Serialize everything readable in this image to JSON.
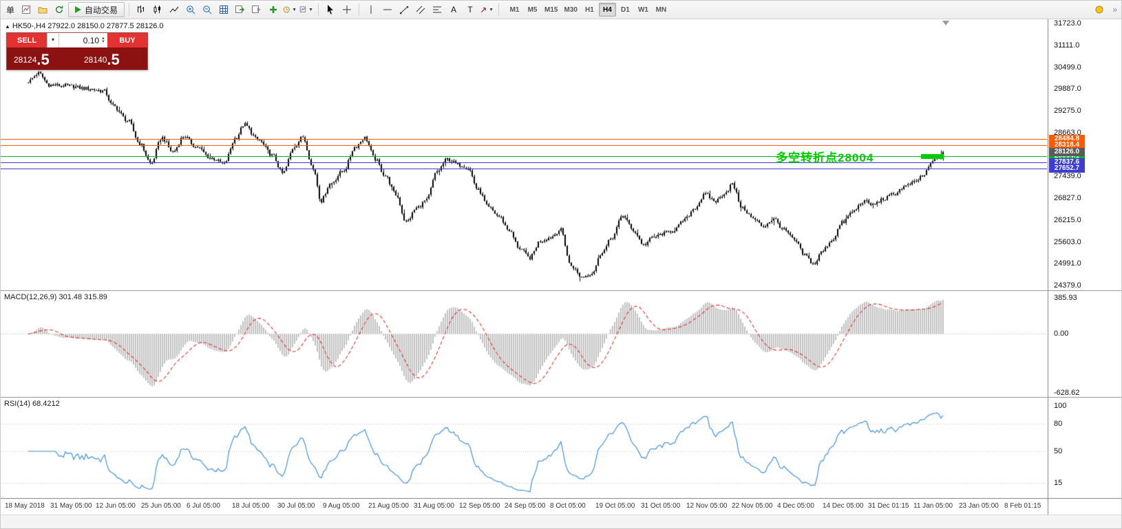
{
  "toolbar": {
    "order_label": "单",
    "autotrading_label": "自动交易",
    "timeframes": [
      "M1",
      "M5",
      "M15",
      "M30",
      "H1",
      "H4",
      "D1",
      "W1",
      "MN"
    ],
    "active_timeframe": "H4",
    "overflow_glyph": "»"
  },
  "trade_panel": {
    "sell_label": "SELL",
    "buy_label": "BUY",
    "volume_value": "0.10",
    "sell_price_main": "28124",
    "sell_price_big": ".5",
    "buy_price_main": "28140",
    "buy_price_big": ".5"
  },
  "chart": {
    "symbol_ohlc_label": "HK50-,H4 27922.0 28150.0 27877.5 28126.0",
    "annotation_text": "多空转折点28004",
    "annotation_color": "#00cc00",
    "current_price_label": "28126.0",
    "current_price_value": 28126.0,
    "current_price_bg": "#5a5a5a",
    "levels": [
      {
        "value": 28484.8,
        "label": "28484.8",
        "color": "#ff5a00"
      },
      {
        "value": 28318.4,
        "label": "28318.4",
        "color": "#ff5a00"
      },
      {
        "value": 28004.1,
        "label": "28004.1",
        "color": "#00b22d"
      },
      {
        "value": 27837.6,
        "label": "27837.6",
        "color": "#3d3dd6"
      },
      {
        "value": 27652.7,
        "label": "27652.7",
        "color": "#3d3dd6"
      }
    ],
    "y_axis_values": [
      31723.0,
      31111.0,
      30499.0,
      29887.0,
      29275.0,
      28663.0,
      27439.0,
      26827.0,
      26215.0,
      25603.0,
      24991.0,
      24379.0
    ],
    "time_axis": [
      "18 May 2018",
      "31 May 05:00",
      "12 Jun 05:00",
      "25 Jun 05:00",
      "6 Jul 05:00",
      "18 Jul 05:00",
      "30 Jul 05:00",
      "9 Aug 05:00",
      "21 Aug 05:00",
      "31 Aug 05:00",
      "12 Sep 05:00",
      "24 Sep 05:00",
      "8 Oct 05:00",
      "19 Oct 05:00",
      "31 Oct 05:00",
      "12 Nov 05:00",
      "22 Nov 05:00",
      "4 Dec 05:00",
      "14 Dec 05:00",
      "31 Dec 01:15",
      "11 Jan 05:00",
      "23 Jan 05:00",
      "8 Feb 01:15"
    ]
  },
  "macd": {
    "label": "MACD(12,26,9) 301.48 315.89",
    "axis_values": [
      385.93,
      0,
      -628.62
    ],
    "axis_labels": [
      "385.93",
      "0.00",
      "-628.62"
    ],
    "histogram_color": "#c0c0c0",
    "signal_color": "#e03131"
  },
  "rsi": {
    "label": "RSI(14) 68.4212",
    "axis_values": [
      100,
      80,
      50,
      15
    ],
    "axis_labels": [
      "100",
      "80",
      "50",
      "15"
    ],
    "level_values": [
      80,
      50,
      15
    ],
    "line_color": "#3f8fdb"
  },
  "chart_data": {
    "type": "candlestick",
    "symbol": "HK50-",
    "timeframe": "H4",
    "ohlc_current": {
      "open": 27922.0,
      "high": 28150.0,
      "low": 27877.5,
      "close": 28126.0
    },
    "bid": 28124.5,
    "ask": 28140.5,
    "y_range": [
      24379,
      31723
    ],
    "bar_count": 444,
    "price_path": [
      [
        0.0,
        30100
      ],
      [
        0.011,
        30330
      ],
      [
        0.023,
        30000
      ],
      [
        0.041,
        29980
      ],
      [
        0.064,
        29900
      ],
      [
        0.083,
        29830
      ],
      [
        0.092,
        29420
      ],
      [
        0.109,
        29000
      ],
      [
        0.122,
        28350
      ],
      [
        0.134,
        27800
      ],
      [
        0.146,
        28520
      ],
      [
        0.158,
        28120
      ],
      [
        0.17,
        28560
      ],
      [
        0.184,
        28260
      ],
      [
        0.199,
        27960
      ],
      [
        0.214,
        27800
      ],
      [
        0.227,
        28520
      ],
      [
        0.236,
        28890
      ],
      [
        0.251,
        28460
      ],
      [
        0.267,
        28030
      ],
      [
        0.278,
        27520
      ],
      [
        0.291,
        28280
      ],
      [
        0.3,
        28540
      ],
      [
        0.312,
        27620
      ],
      [
        0.32,
        26750
      ],
      [
        0.33,
        27230
      ],
      [
        0.345,
        27610
      ],
      [
        0.357,
        28260
      ],
      [
        0.368,
        28520
      ],
      [
        0.379,
        27920
      ],
      [
        0.39,
        27460
      ],
      [
        0.402,
        26920
      ],
      [
        0.413,
        26150
      ],
      [
        0.425,
        26560
      ],
      [
        0.435,
        26760
      ],
      [
        0.447,
        27580
      ],
      [
        0.458,
        27920
      ],
      [
        0.471,
        27760
      ],
      [
        0.48,
        27700
      ],
      [
        0.492,
        27050
      ],
      [
        0.503,
        26560
      ],
      [
        0.515,
        26310
      ],
      [
        0.525,
        25940
      ],
      [
        0.537,
        25430
      ],
      [
        0.548,
        25150
      ],
      [
        0.56,
        25640
      ],
      [
        0.57,
        25720
      ],
      [
        0.582,
        25940
      ],
      [
        0.593,
        24940
      ],
      [
        0.605,
        24620
      ],
      [
        0.616,
        24730
      ],
      [
        0.628,
        25340
      ],
      [
        0.638,
        25720
      ],
      [
        0.65,
        26350
      ],
      [
        0.661,
        25930
      ],
      [
        0.673,
        25520
      ],
      [
        0.683,
        25730
      ],
      [
        0.695,
        25840
      ],
      [
        0.706,
        25940
      ],
      [
        0.718,
        26230
      ],
      [
        0.728,
        26540
      ],
      [
        0.74,
        26930
      ],
      [
        0.751,
        26740
      ],
      [
        0.763,
        27000
      ],
      [
        0.769,
        27220
      ],
      [
        0.781,
        26540
      ],
      [
        0.793,
        26240
      ],
      [
        0.803,
        26040
      ],
      [
        0.815,
        26240
      ],
      [
        0.826,
        25940
      ],
      [
        0.838,
        25640
      ],
      [
        0.848,
        25240
      ],
      [
        0.859,
        24980
      ],
      [
        0.868,
        25340
      ],
      [
        0.878,
        25640
      ],
      [
        0.89,
        26140
      ],
      [
        0.901,
        26440
      ],
      [
        0.913,
        26740
      ],
      [
        0.923,
        26640
      ],
      [
        0.935,
        26800
      ],
      [
        0.946,
        26940
      ],
      [
        0.958,
        27150
      ],
      [
        0.968,
        27260
      ],
      [
        0.979,
        27480
      ],
      [
        0.988,
        27830
      ],
      [
        0.995,
        28000
      ],
      [
        1.0,
        28126
      ]
    ],
    "indicators": [
      {
        "name": "MACD",
        "fast": 12,
        "slow": 26,
        "signal": 9,
        "value": 301.48,
        "signal_value": 315.89
      },
      {
        "name": "RSI",
        "period": 14,
        "value": 68.4212
      }
    ]
  }
}
